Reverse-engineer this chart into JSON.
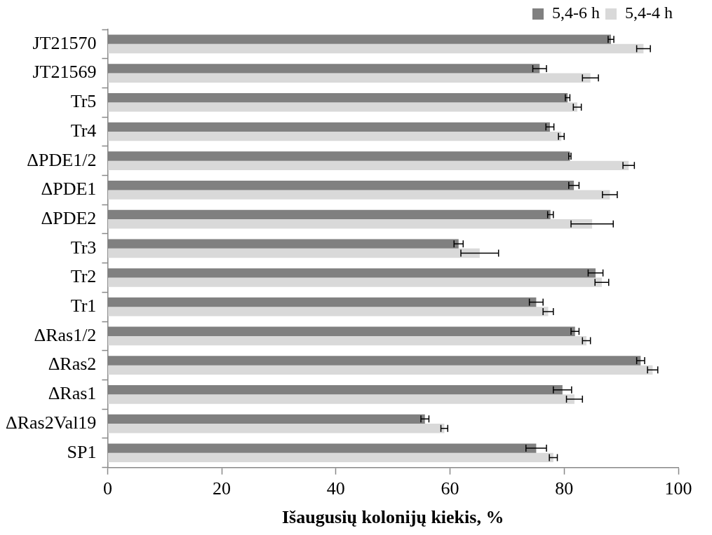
{
  "chart_data": {
    "type": "bar",
    "orientation": "horizontal",
    "xlabel": "Išaugusių kolonijų kiekis, %",
    "categories": [
      "JT21570",
      "JT21569",
      "Tr5",
      "Tr4",
      "ΔPDE1/2",
      "ΔPDE1",
      "ΔPDE2",
      "Tr3",
      "Tr2",
      "Tr1",
      "ΔRas1/2",
      "ΔRas2",
      "ΔRas1",
      "ΔRas2Val19",
      "SP1"
    ],
    "series": [
      {
        "name": "5,4-6 h",
        "color": "#808080",
        "values": [
          88.2,
          75.7,
          80.6,
          77.5,
          81.0,
          81.7,
          77.6,
          61.5,
          85.5,
          75.1,
          81.9,
          93.4,
          79.7,
          55.6,
          75.1
        ],
        "errors": [
          0.5,
          1.2,
          0.4,
          0.7,
          0.2,
          0.9,
          0.5,
          0.8,
          1.3,
          1.2,
          0.7,
          0.7,
          1.6,
          0.7,
          1.8
        ]
      },
      {
        "name": "5,4-4 h",
        "color": "#d9d9d9",
        "values": [
          93.9,
          84.6,
          82.3,
          79.5,
          91.3,
          88.0,
          84.9,
          65.2,
          86.6,
          77.2,
          83.9,
          95.5,
          81.8,
          59.0,
          78.1
        ],
        "errors": [
          1.2,
          1.4,
          0.7,
          0.5,
          1.0,
          1.3,
          3.7,
          3.3,
          1.2,
          0.9,
          0.7,
          0.9,
          1.4,
          0.6,
          0.7
        ]
      }
    ],
    "xlim": [
      0,
      100
    ],
    "xticks": [
      0,
      20,
      40,
      60,
      80,
      100
    ],
    "grid": false,
    "legend": "top right"
  }
}
